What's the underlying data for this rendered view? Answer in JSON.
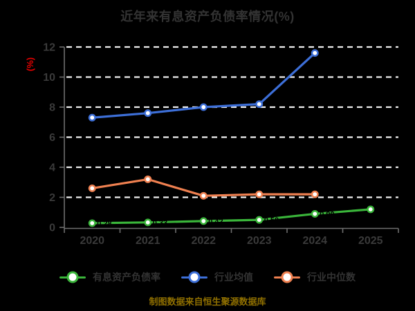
{
  "title": "近年来有息资产负债率情况(%)",
  "title_color": "#333333",
  "background_color": "#000000",
  "caption": {
    "text": "制图数据来自恒生聚源数据库",
    "color": "#8f6f00"
  },
  "axes": {
    "ylabel": "(%)",
    "ylabel_color": "#e60000",
    "tick_color": "#3a3a3a",
    "axis_line_color": "#6f6f6f",
    "gridline_color": "#efefef"
  },
  "legend": [
    {
      "label": "有息资产负债率",
      "color": "#3ab53a"
    },
    {
      "label": "行业均值",
      "color": "#3d6fd8"
    },
    {
      "label": "行业中位数",
      "color": "#ef8050"
    }
  ],
  "chart_data": {
    "type": "line",
    "title": "近年来有息资产负债率情况(%)",
    "categories": [
      "2020",
      "2021",
      "2022",
      "2023",
      "2024",
      "2025"
    ],
    "xlabel": "",
    "ylabel": "(%)",
    "ylim": [
      0,
      12
    ],
    "yticks": [
      0,
      2,
      4,
      6,
      8,
      10,
      12
    ],
    "grid": "horizontal-white-dashed",
    "legend_position": "bottom",
    "data_label_color": "#000000",
    "series": [
      {
        "name": "有息资产负债率",
        "color": "#3ab53a",
        "values": [
          0.28,
          0.33,
          0.42,
          0.5,
          0.9,
          1.2
        ],
        "black_value_labels": true
      },
      {
        "name": "行业均值",
        "color": "#3d6fd8",
        "values": [
          7.3,
          7.6,
          8.0,
          8.2,
          11.6,
          null
        ],
        "black_value_labels": false
      },
      {
        "name": "行业中位数",
        "color": "#ef8050",
        "values": [
          2.6,
          3.2,
          2.1,
          2.2,
          2.2,
          null
        ],
        "black_value_labels": false
      }
    ]
  }
}
